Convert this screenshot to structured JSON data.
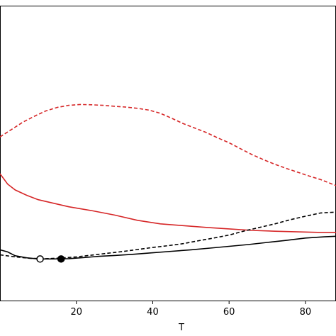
{
  "chart_data": {
    "type": "line",
    "title": "",
    "xlabel": "T",
    "ylabel": "",
    "xlim": [
      0,
      88
    ],
    "ylim": [
      0,
      1
    ],
    "grid": false,
    "legend": "none",
    "x_ticks": [
      20,
      40,
      60,
      80
    ],
    "series": [
      {
        "color": "#d62728",
        "style": "dashed",
        "x": [
          0,
          3,
          6,
          9,
          12,
          15,
          18,
          21,
          24,
          27,
          30,
          33,
          36,
          39,
          42,
          45,
          48,
          51,
          54,
          57,
          60,
          63,
          66,
          69,
          72,
          75,
          78,
          81,
          84,
          88
        ],
        "y": [
          0.555,
          0.58,
          0.605,
          0.625,
          0.643,
          0.655,
          0.662,
          0.665,
          0.664,
          0.662,
          0.659,
          0.656,
          0.652,
          0.646,
          0.635,
          0.618,
          0.6,
          0.585,
          0.57,
          0.552,
          0.535,
          0.515,
          0.495,
          0.478,
          0.462,
          0.448,
          0.435,
          0.422,
          0.41,
          0.39
        ]
      },
      {
        "color": "#d62728",
        "style": "solid",
        "x": [
          0,
          2,
          4,
          7,
          10,
          14,
          18,
          24,
          30,
          36,
          42,
          48,
          54,
          60,
          66,
          72,
          78,
          84,
          88
        ],
        "y": [
          0.43,
          0.395,
          0.375,
          0.357,
          0.342,
          0.33,
          0.318,
          0.305,
          0.29,
          0.272,
          0.26,
          0.254,
          0.248,
          0.243,
          0.238,
          0.235,
          0.233,
          0.231,
          0.231
        ]
      },
      {
        "color": "#000000",
        "style": "dashed",
        "x": [
          0,
          4,
          8,
          12,
          16,
          20,
          24,
          28,
          32,
          36,
          40,
          44,
          48,
          52,
          56,
          60,
          64,
          68,
          72,
          76,
          80,
          84,
          88
        ],
        "y": [
          0.155,
          0.148,
          0.143,
          0.142,
          0.144,
          0.148,
          0.154,
          0.16,
          0.166,
          0.173,
          0.18,
          0.186,
          0.193,
          0.203,
          0.212,
          0.222,
          0.236,
          0.248,
          0.26,
          0.274,
          0.286,
          0.297,
          0.3
        ]
      },
      {
        "color": "#000000",
        "style": "solid",
        "x": [
          0,
          2,
          4,
          7,
          10,
          14,
          18,
          22,
          26,
          30,
          35,
          40,
          45,
          50,
          55,
          60,
          65,
          70,
          75,
          80,
          85,
          88
        ],
        "y": [
          0.172,
          0.165,
          0.152,
          0.145,
          0.141,
          0.141,
          0.142,
          0.146,
          0.15,
          0.153,
          0.157,
          0.162,
          0.167,
          0.172,
          0.178,
          0.184,
          0.19,
          0.197,
          0.204,
          0.212,
          0.216,
          0.218
        ]
      }
    ],
    "markers": [
      {
        "x": 10.5,
        "y": 0.141,
        "fill": "none",
        "series": "black-dashed-min"
      },
      {
        "x": 16,
        "y": 0.141,
        "fill": "#000000",
        "series": "black-solid-min"
      }
    ]
  }
}
